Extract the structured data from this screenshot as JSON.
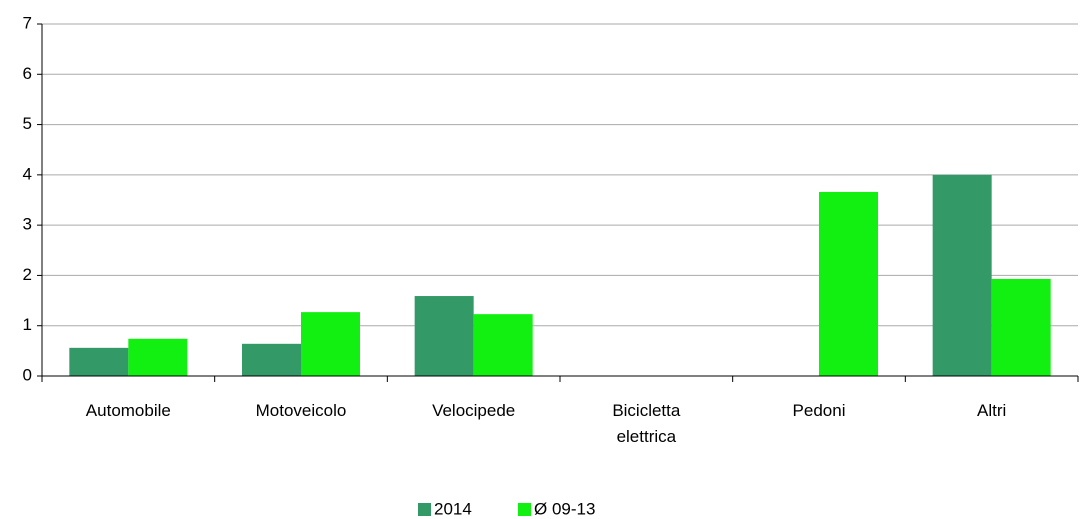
{
  "chart_data": {
    "type": "bar",
    "categories": [
      "Automobile",
      "Motoveicolo",
      "Velocipede",
      "Bicicletta elettrica",
      "Pedoni",
      "Altri"
    ],
    "series": [
      {
        "name": "2014",
        "color": "#339966",
        "values": [
          0.56,
          0.64,
          1.59,
          0,
          0,
          4.0
        ]
      },
      {
        "name": "Ø 09-13",
        "color": "#11f011",
        "values": [
          0.74,
          1.27,
          1.23,
          0,
          3.66,
          1.93
        ]
      }
    ],
    "ylim": [
      0,
      7
    ],
    "yticks": [
      0,
      1,
      2,
      3,
      4,
      5,
      6,
      7
    ],
    "grid": true,
    "legend": "bottom"
  }
}
